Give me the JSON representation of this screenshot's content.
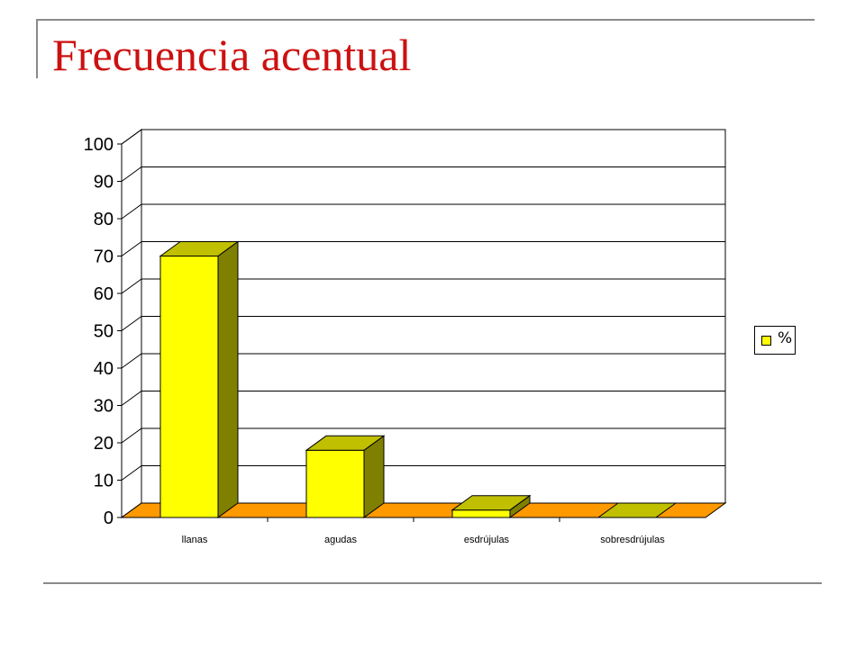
{
  "slide": {
    "title": "Frecuencia acentual"
  },
  "chart_data": {
    "type": "bar",
    "style": "3d-column",
    "categories": [
      "llanas",
      "agudas",
      "esdrújulas",
      "sobresdrújulas"
    ],
    "series": [
      {
        "name": "%",
        "values": [
          70,
          18,
          2,
          0
        ]
      }
    ],
    "ylim": [
      0,
      100
    ],
    "yticks": [
      0,
      10,
      20,
      30,
      40,
      50,
      60,
      70,
      80,
      90,
      100
    ],
    "grid": true,
    "legend_position": "right",
    "colors": {
      "bar_front": "#ffff00",
      "bar_top": "#c0c000",
      "bar_side": "#808000",
      "floor": "#ff9900",
      "gridline": "#000000"
    }
  }
}
